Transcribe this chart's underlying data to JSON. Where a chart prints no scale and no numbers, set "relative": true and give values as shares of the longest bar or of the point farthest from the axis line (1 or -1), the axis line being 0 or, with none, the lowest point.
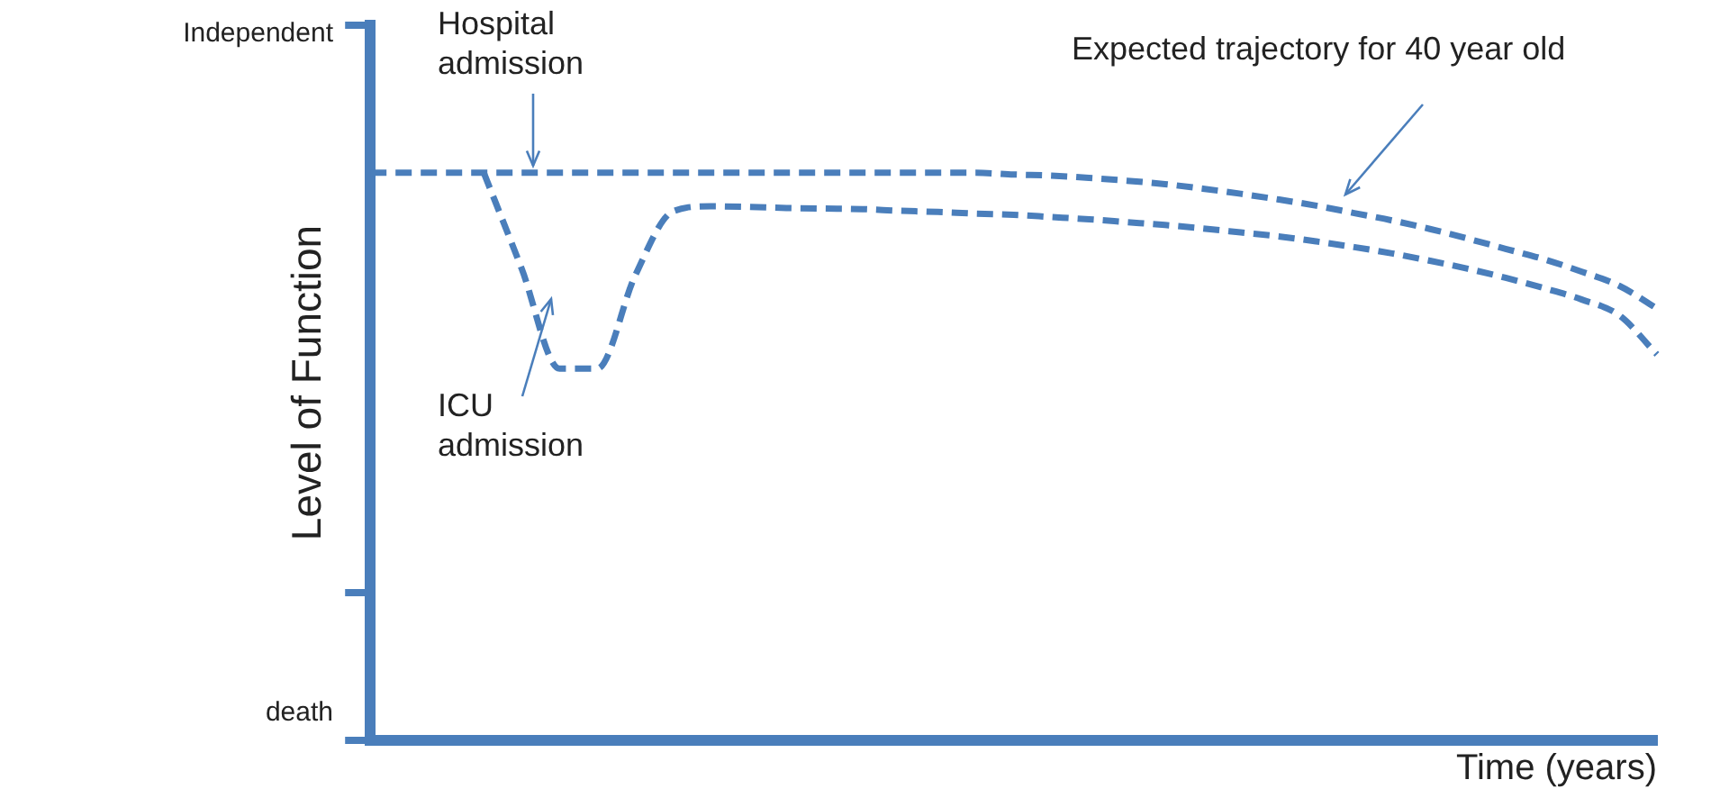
{
  "chart_data": {
    "type": "line",
    "xlabel": "Time (years)",
    "ylabel": "Level of Function",
    "relative": true,
    "categories": [
      null,
      null,
      null,
      null,
      null,
      null,
      null,
      null,
      null,
      null,
      null,
      null,
      null,
      null,
      null,
      null,
      null,
      null,
      null,
      null,
      null,
      null,
      null,
      null,
      null,
      null,
      null,
      null,
      null,
      null,
      null,
      null,
      null,
      null,
      null
    ],
    "series": [
      {
        "color": "#4a7ebb",
        "line_style": "dashed",
        "values": [
          1,
          1,
          1,
          1,
          1,
          1,
          1,
          1,
          1,
          1,
          1,
          1,
          1,
          1,
          1,
          1,
          1,
          0.997,
          0.995,
          0.991,
          0.986,
          0.98,
          0.972,
          0.963,
          0.953,
          0.942,
          0.929,
          0.916,
          0.901,
          0.884,
          0.866,
          0.848,
          0.826,
          0.801,
          0.761
        ]
      },
      {
        "color": "#4a7ebb",
        "line_style": "dashed",
        "values": [
          null,
          null,
          null,
          1,
          0.831,
          0.655,
          0.655,
          0.819,
          0.932,
          0.941,
          0.94,
          0.938,
          0.937,
          0.936,
          0.933,
          0.931,
          0.928,
          0.926,
          0.922,
          0.918,
          0.913,
          0.908,
          0.902,
          0.895,
          0.888,
          0.879,
          0.869,
          0.858,
          0.845,
          0.831,
          0.815,
          0.797,
          0.777,
          0.749,
          0.68
        ]
      }
    ],
    "annotations": [
      "Hospital admission",
      "ICU admission",
      "Expected trajectory for 40 year old",
      "Independent",
      "death"
    ],
    "grid": false,
    "legend": false,
    "marker": "none",
    "tick_labels": false
  }
}
